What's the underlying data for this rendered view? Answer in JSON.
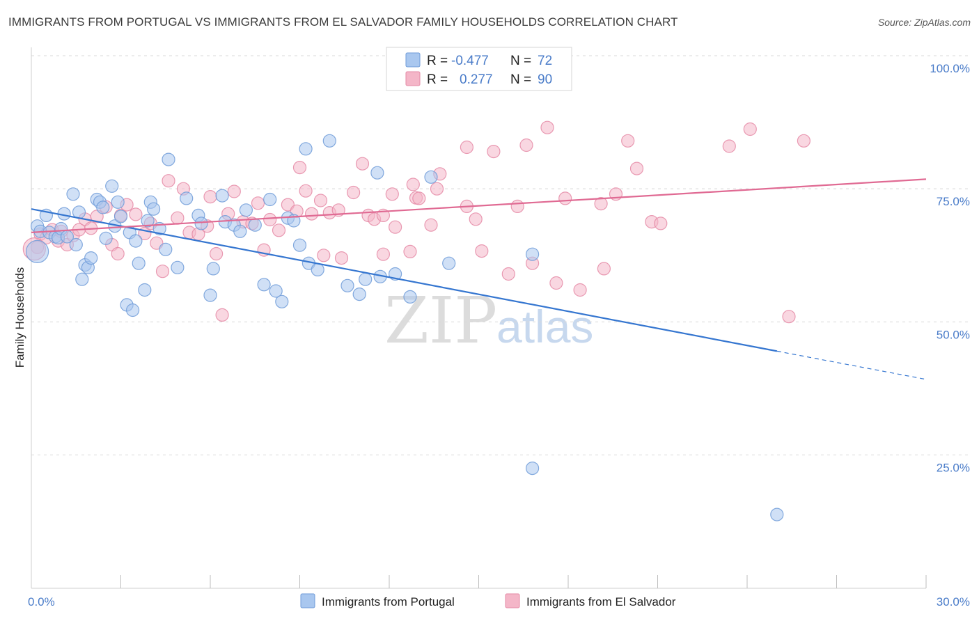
{
  "header": {
    "title": "IMMIGRANTS FROM PORTUGAL VS IMMIGRANTS FROM EL SALVADOR FAMILY HOUSEHOLDS CORRELATION CHART",
    "source": "Source: ZipAtlas.com"
  },
  "legend_top": {
    "blue": {
      "r_label": "R =",
      "r_value": "-0.477",
      "n_label": "N =",
      "n_value": "72"
    },
    "pink": {
      "r_label": "R =",
      "r_value": "0.277",
      "n_label": "N =",
      "n_value": "90"
    }
  },
  "colors": {
    "blue_fill": "#a9c7ef",
    "blue_stroke": "#6f9bd8",
    "blue_line": "#3576d0",
    "pink_fill": "#f4b6c8",
    "pink_stroke": "#e58aa6",
    "pink_line": "#e06a93",
    "tick_text": "#4a7cc9",
    "grid": "#d8d8d8"
  },
  "watermark": {
    "zip": "ZIP",
    "atlas": "atlas"
  },
  "chart_data": {
    "type": "scatter",
    "ylabel": "Family Households",
    "xlim": [
      0,
      30
    ],
    "ylim": [
      0,
      103
    ],
    "x_tick_labels": [
      {
        "value": 0,
        "label": "0.0%"
      },
      {
        "value": 30,
        "label": "30.0%"
      }
    ],
    "x_minor_ticks": [
      3,
      6,
      9,
      12,
      15,
      18,
      21,
      24,
      27,
      30
    ],
    "y_ticks": [
      {
        "value": 100,
        "label": "100.0%"
      },
      {
        "value": 75,
        "label": "75.0%"
      },
      {
        "value": 50,
        "label": "50.0%"
      },
      {
        "value": 25,
        "label": "25.0%"
      }
    ],
    "grid": "horizontal dashed",
    "legend_bottom": [
      "Immigrants from Portugal",
      "Immigrants from El Salvador"
    ],
    "series": [
      {
        "name": "Immigrants from Portugal",
        "color": "blue",
        "trend": {
          "x0": 0,
          "y0": 71.2,
          "x1": 25,
          "y1": 44.5,
          "dash_x1": 30,
          "dash_y1": 39.2
        },
        "points": [
          [
            0.2,
            63.2
          ],
          [
            0.2,
            68
          ],
          [
            0.3,
            67
          ],
          [
            0.5,
            70
          ],
          [
            0.6,
            66.8
          ],
          [
            0.8,
            66
          ],
          [
            0.9,
            65.8
          ],
          [
            1.0,
            67.5
          ],
          [
            1.1,
            70.3
          ],
          [
            1.2,
            66
          ],
          [
            1.4,
            74
          ],
          [
            1.5,
            64.5
          ],
          [
            1.6,
            70.6
          ],
          [
            1.7,
            58
          ],
          [
            1.8,
            60.7
          ],
          [
            1.9,
            60.2
          ],
          [
            2.0,
            62
          ],
          [
            2.2,
            73
          ],
          [
            2.3,
            72.5
          ],
          [
            2.4,
            71.5
          ],
          [
            2.5,
            65.7
          ],
          [
            2.7,
            75.5
          ],
          [
            2.8,
            68
          ],
          [
            2.9,
            72.5
          ],
          [
            3.0,
            69.8
          ],
          [
            3.2,
            53.2
          ],
          [
            3.3,
            66.8
          ],
          [
            3.4,
            52.2
          ],
          [
            3.5,
            65.2
          ],
          [
            3.6,
            61
          ],
          [
            3.8,
            56
          ],
          [
            3.9,
            69
          ],
          [
            4.0,
            72.5
          ],
          [
            4.1,
            71.2
          ],
          [
            4.3,
            67.5
          ],
          [
            4.5,
            63.6
          ],
          [
            4.6,
            80.5
          ],
          [
            4.9,
            60.2
          ],
          [
            5.2,
            73.2
          ],
          [
            5.6,
            70
          ],
          [
            5.7,
            68.5
          ],
          [
            6.0,
            55
          ],
          [
            6.1,
            60
          ],
          [
            6.4,
            73.7
          ],
          [
            6.5,
            68.8
          ],
          [
            6.8,
            68.2
          ],
          [
            7.0,
            67
          ],
          [
            7.2,
            71
          ],
          [
            7.5,
            68.2
          ],
          [
            7.8,
            57
          ],
          [
            8.0,
            73
          ],
          [
            8.2,
            55.8
          ],
          [
            8.4,
            53.8
          ],
          [
            8.6,
            69.5
          ],
          [
            8.8,
            69
          ],
          [
            9.0,
            64.4
          ],
          [
            9.2,
            82.5
          ],
          [
            9.3,
            61
          ],
          [
            9.6,
            59.8
          ],
          [
            10.0,
            84
          ],
          [
            10.6,
            56.8
          ],
          [
            11.0,
            55.2
          ],
          [
            11.2,
            58
          ],
          [
            11.6,
            78
          ],
          [
            11.7,
            58.5
          ],
          [
            12.2,
            59
          ],
          [
            12.7,
            54.7
          ],
          [
            13.4,
            77.2
          ],
          [
            14.0,
            61
          ],
          [
            16.8,
            62.7
          ],
          [
            16.8,
            22.5
          ],
          [
            25.0,
            13.8
          ]
        ]
      },
      {
        "name": "Immigrants from El Salvador",
        "color": "pink",
        "trend": {
          "x0": 0,
          "y0": 66.8,
          "x1": 30,
          "y1": 76.8
        },
        "points": [
          [
            0.2,
            64
          ],
          [
            0.3,
            66.5
          ],
          [
            0.5,
            65.8
          ],
          [
            0.7,
            67.3
          ],
          [
            0.9,
            65.2
          ],
          [
            1.0,
            67
          ],
          [
            1.2,
            64.5
          ],
          [
            1.4,
            66.2
          ],
          [
            1.6,
            67.3
          ],
          [
            1.8,
            69.3
          ],
          [
            2.0,
            67.6
          ],
          [
            2.2,
            69.8
          ],
          [
            2.5,
            71.6
          ],
          [
            2.7,
            64.5
          ],
          [
            2.9,
            62.8
          ],
          [
            3.0,
            70
          ],
          [
            3.2,
            72
          ],
          [
            3.5,
            70.2
          ],
          [
            3.8,
            66.6
          ],
          [
            4.0,
            68.5
          ],
          [
            4.2,
            64.8
          ],
          [
            4.4,
            59.5
          ],
          [
            4.6,
            76.5
          ],
          [
            4.9,
            69.5
          ],
          [
            5.1,
            75
          ],
          [
            5.3,
            66.8
          ],
          [
            5.6,
            66.5
          ],
          [
            5.9,
            68
          ],
          [
            6.0,
            73.5
          ],
          [
            6.2,
            62.8
          ],
          [
            6.4,
            51.3
          ],
          [
            6.6,
            70.3
          ],
          [
            6.8,
            74.5
          ],
          [
            7.1,
            68.8
          ],
          [
            7.4,
            68.5
          ],
          [
            7.6,
            72.3
          ],
          [
            7.8,
            63.5
          ],
          [
            8.0,
            69.2
          ],
          [
            8.3,
            67.2
          ],
          [
            8.6,
            72
          ],
          [
            8.9,
            70.8
          ],
          [
            9.0,
            79
          ],
          [
            9.2,
            74.6
          ],
          [
            9.4,
            70.3
          ],
          [
            9.7,
            72.8
          ],
          [
            9.8,
            62.5
          ],
          [
            10.0,
            70.5
          ],
          [
            10.3,
            71
          ],
          [
            10.4,
            62
          ],
          [
            10.8,
            74.3
          ],
          [
            11.1,
            79.7
          ],
          [
            11.3,
            70
          ],
          [
            11.5,
            69.3
          ],
          [
            11.8,
            70
          ],
          [
            11.8,
            62.7
          ],
          [
            12.1,
            74
          ],
          [
            12.2,
            67.8
          ],
          [
            12.7,
            63.2
          ],
          [
            12.8,
            75.8
          ],
          [
            12.9,
            73.3
          ],
          [
            13.0,
            73.2
          ],
          [
            13.4,
            68.2
          ],
          [
            13.6,
            75
          ],
          [
            13.7,
            77.8
          ],
          [
            14.6,
            71.7
          ],
          [
            14.6,
            82.8
          ],
          [
            14.9,
            69.3
          ],
          [
            15.1,
            63.3
          ],
          [
            15.5,
            82
          ],
          [
            16.0,
            59
          ],
          [
            16.3,
            71.7
          ],
          [
            16.6,
            83.2
          ],
          [
            16.8,
            61
          ],
          [
            17.3,
            86.5
          ],
          [
            17.6,
            57.3
          ],
          [
            17.9,
            73.2
          ],
          [
            18.4,
            56
          ],
          [
            19.1,
            72.2
          ],
          [
            19.2,
            60
          ],
          [
            19.6,
            74
          ],
          [
            20.0,
            84
          ],
          [
            20.3,
            78.8
          ],
          [
            20.8,
            68.8
          ],
          [
            21.1,
            68.5
          ],
          [
            23.4,
            83
          ],
          [
            24.1,
            86.2
          ],
          [
            25.4,
            51
          ],
          [
            25.9,
            84
          ],
          [
            12.9,
            95.2
          ],
          [
            0.1,
            63.7
          ]
        ]
      }
    ]
  }
}
